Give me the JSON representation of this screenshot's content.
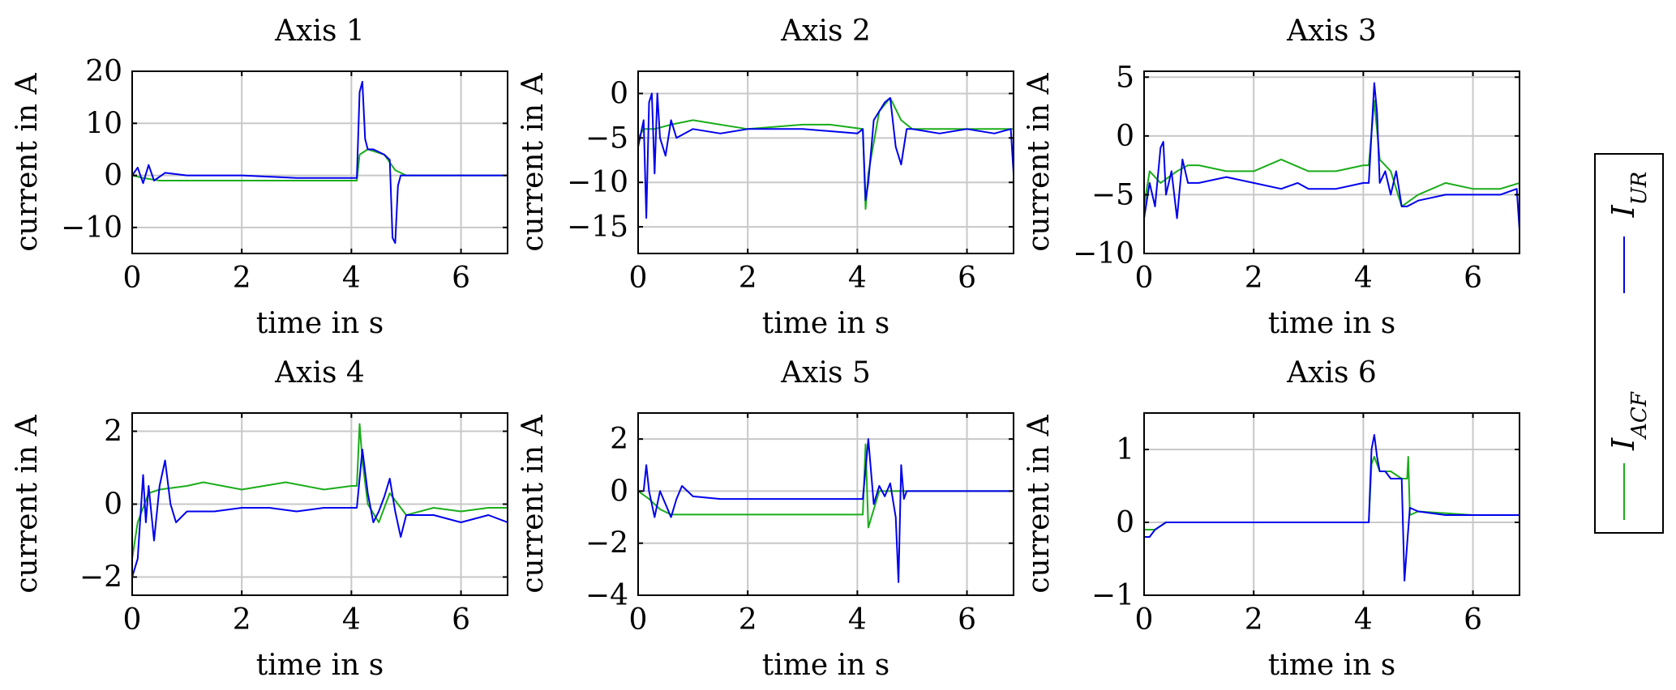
{
  "figure": {
    "legend": [
      {
        "label": "I",
        "subscript": "UR",
        "color": "#0000ee"
      },
      {
        "label": "I",
        "subscript": "ACF",
        "color": "#1aad1a"
      }
    ]
  },
  "chart_data": [
    {
      "type": "line",
      "title": "Axis 1",
      "xlabel": "time in s",
      "ylabel": "current in A",
      "xlim": [
        0,
        6.85
      ],
      "ylim": [
        -15,
        20
      ],
      "xticks": [
        0,
        2,
        4,
        6
      ],
      "yticks": [
        -10,
        0,
        10,
        20
      ],
      "ytick_labels": [
        "−10",
        "0",
        "10",
        "20"
      ],
      "grid": true,
      "series": [
        {
          "name": "I_UR",
          "color": "#0000ee",
          "x": [
            0,
            0.1,
            0.2,
            0.3,
            0.4,
            0.6,
            1.0,
            2.0,
            3.0,
            4.1,
            4.15,
            4.2,
            4.25,
            4.3,
            4.4,
            4.6,
            4.7,
            4.75,
            4.8,
            4.85,
            4.9,
            5.0,
            5.5,
            6.0,
            6.85
          ],
          "values": [
            0,
            1.5,
            -1.5,
            2,
            -1,
            0.5,
            0,
            0,
            -0.5,
            -0.5,
            16,
            18,
            7,
            5,
            5,
            4,
            3,
            -12,
            -13,
            -2,
            0,
            0,
            0,
            0,
            0
          ]
        },
        {
          "name": "I_ACF",
          "color": "#1aad1a",
          "x": [
            0,
            0.2,
            0.5,
            1.0,
            2.0,
            3.0,
            4.1,
            4.15,
            4.3,
            4.6,
            4.8,
            5.0,
            6.0,
            6.85
          ],
          "values": [
            0,
            -0.5,
            -1,
            -1,
            -1,
            -1,
            -1,
            4,
            5,
            4,
            1,
            0,
            0,
            0
          ]
        }
      ]
    },
    {
      "type": "line",
      "title": "Axis 2",
      "xlabel": "time in s",
      "ylabel": "current in A",
      "xlim": [
        0,
        6.85
      ],
      "ylim": [
        -18,
        2.5
      ],
      "xticks": [
        0,
        2,
        4,
        6
      ],
      "yticks": [
        -15,
        -10,
        -5,
        0
      ],
      "ytick_labels": [
        "−15",
        "−10",
        "−5",
        "0"
      ],
      "grid": true,
      "series": [
        {
          "name": "I_UR",
          "color": "#0000ee",
          "x": [
            0,
            0.1,
            0.15,
            0.2,
            0.25,
            0.3,
            0.35,
            0.4,
            0.5,
            0.6,
            0.7,
            1.0,
            1.5,
            2.0,
            3.0,
            4.0,
            4.1,
            4.15,
            4.2,
            4.3,
            4.5,
            4.6,
            4.7,
            4.8,
            4.9,
            5.0,
            5.5,
            6.0,
            6.5,
            6.8,
            6.85
          ],
          "values": [
            -6,
            -3,
            -14,
            -1,
            0,
            -9,
            0,
            -5,
            -7,
            -3,
            -5,
            -4,
            -4.5,
            -4,
            -4,
            -4.5,
            -4,
            -12,
            -10,
            -3,
            -1,
            -0.5,
            -6,
            -8,
            -4,
            -4,
            -4.5,
            -4,
            -4.5,
            -4,
            -9
          ]
        },
        {
          "name": "I_ACF",
          "color": "#1aad1a",
          "x": [
            0,
            0.1,
            0.3,
            0.6,
            1.0,
            1.5,
            2.0,
            3.0,
            3.5,
            4.1,
            4.15,
            4.2,
            4.4,
            4.6,
            4.8,
            5.0,
            5.5,
            6.0,
            6.85
          ],
          "values": [
            -5,
            -4,
            -4,
            -3.5,
            -3,
            -3.5,
            -4,
            -3.5,
            -3.5,
            -4,
            -13,
            -9,
            -2,
            -0.5,
            -3,
            -4,
            -4,
            -4,
            -4
          ]
        }
      ]
    },
    {
      "type": "line",
      "title": "Axis 3",
      "xlabel": "time in s",
      "ylabel": "current in A",
      "xlim": [
        0,
        6.85
      ],
      "ylim": [
        -10,
        5.5
      ],
      "xticks": [
        0,
        2,
        4,
        6
      ],
      "yticks": [
        -10,
        -5,
        0,
        5
      ],
      "ytick_labels": [
        "−10",
        "−5",
        "0",
        "5"
      ],
      "grid": true,
      "series": [
        {
          "name": "I_UR",
          "color": "#0000ee",
          "x": [
            0,
            0.1,
            0.2,
            0.3,
            0.35,
            0.4,
            0.5,
            0.6,
            0.7,
            0.8,
            1.0,
            1.5,
            2.0,
            2.5,
            2.8,
            3.0,
            3.5,
            4.0,
            4.1,
            4.2,
            4.25,
            4.3,
            4.4,
            4.5,
            4.6,
            4.7,
            4.8,
            5.0,
            5.5,
            6.0,
            6.5,
            6.8,
            6.85
          ],
          "values": [
            -7,
            -4,
            -6,
            -1,
            -0.5,
            -5,
            -3,
            -7,
            -2,
            -4,
            -4,
            -3.5,
            -4,
            -4.5,
            -4,
            -4.5,
            -4.5,
            -4,
            -4,
            4.5,
            2,
            -4,
            -3,
            -5,
            -3,
            -6,
            -6,
            -5.5,
            -5,
            -5,
            -5,
            -4.5,
            -8
          ]
        },
        {
          "name": "I_ACF",
          "color": "#1aad1a",
          "x": [
            0,
            0.1,
            0.3,
            0.6,
            0.8,
            1.0,
            1.5,
            2.0,
            2.5,
            3.0,
            3.5,
            4.0,
            4.1,
            4.2,
            4.3,
            4.5,
            4.7,
            5.0,
            5.5,
            6.0,
            6.5,
            6.85
          ],
          "values": [
            -6,
            -3,
            -4,
            -3,
            -2.5,
            -2.5,
            -3,
            -3,
            -2,
            -3,
            -3,
            -2.5,
            -2.5,
            3,
            -2,
            -3,
            -6,
            -5,
            -4,
            -4.5,
            -4.5,
            -4
          ]
        }
      ]
    },
    {
      "type": "line",
      "title": "Axis 4",
      "xlabel": "time in s",
      "ylabel": "current in A",
      "xlim": [
        0,
        6.85
      ],
      "ylim": [
        -2.5,
        2.5
      ],
      "xticks": [
        0,
        2,
        4,
        6
      ],
      "yticks": [
        -2,
        0,
        2
      ],
      "ytick_labels": [
        "−2",
        "0",
        "2"
      ],
      "grid": true,
      "series": [
        {
          "name": "I_UR",
          "color": "#0000ee",
          "x": [
            0,
            0.1,
            0.2,
            0.25,
            0.3,
            0.4,
            0.5,
            0.6,
            0.7,
            0.8,
            1.0,
            1.5,
            2.0,
            2.5,
            3.0,
            3.5,
            4.0,
            4.1,
            4.2,
            4.3,
            4.4,
            4.5,
            4.6,
            4.7,
            4.8,
            4.9,
            5.0,
            5.5,
            6.0,
            6.5,
            6.85
          ],
          "values": [
            -2,
            -1.5,
            0.8,
            -0.5,
            0.5,
            -1,
            0.5,
            1.2,
            0,
            -0.5,
            -0.2,
            -0.2,
            -0.1,
            -0.1,
            -0.2,
            -0.1,
            -0.1,
            -0.1,
            1.5,
            0.3,
            -0.5,
            -0.2,
            0.2,
            0.7,
            -0.2,
            -0.9,
            -0.3,
            -0.3,
            -0.5,
            -0.3,
            -0.5
          ]
        },
        {
          "name": "I_ACF",
          "color": "#1aad1a",
          "x": [
            0,
            0.1,
            0.3,
            0.5,
            1.0,
            1.3,
            2.0,
            2.8,
            3.5,
            4.0,
            4.1,
            4.15,
            4.2,
            4.3,
            4.5,
            4.7,
            5.0,
            5.5,
            6.0,
            6.5,
            6.85
          ],
          "values": [
            -1.5,
            -0.5,
            0.3,
            0.4,
            0.5,
            0.6,
            0.4,
            0.6,
            0.4,
            0.5,
            0.5,
            2.2,
            1.2,
            0,
            -0.5,
            0.3,
            -0.3,
            -0.1,
            -0.2,
            -0.1,
            -0.1
          ]
        }
      ]
    },
    {
      "type": "line",
      "title": "Axis 5",
      "xlabel": "time in s",
      "ylabel": "current in A",
      "xlim": [
        0,
        6.85
      ],
      "ylim": [
        -4,
        3
      ],
      "xticks": [
        0,
        2,
        4,
        6
      ],
      "yticks": [
        -4,
        -2,
        0,
        2
      ],
      "ytick_labels": [
        "−4",
        "−2",
        "0",
        "2"
      ],
      "grid": true,
      "series": [
        {
          "name": "I_UR",
          "color": "#0000ee",
          "x": [
            0,
            0.1,
            0.15,
            0.2,
            0.3,
            0.4,
            0.5,
            0.6,
            0.7,
            0.8,
            1.0,
            1.5,
            2.0,
            3.0,
            4.0,
            4.1,
            4.2,
            4.3,
            4.4,
            4.5,
            4.6,
            4.7,
            4.75,
            4.8,
            4.85,
            4.9,
            5.0,
            5.5,
            6.0,
            6.85
          ],
          "values": [
            0,
            0,
            1,
            0,
            -1,
            0,
            -0.5,
            -1,
            -0.3,
            0.2,
            -0.2,
            -0.3,
            -0.3,
            -0.3,
            -0.3,
            -0.3,
            2,
            -0.5,
            0.2,
            -0.2,
            0.3,
            -1,
            -3.5,
            1,
            -0.3,
            0,
            0,
            0,
            0,
            0
          ]
        },
        {
          "name": "I_ACF",
          "color": "#1aad1a",
          "x": [
            0,
            0.2,
            0.4,
            0.6,
            1.0,
            2.0,
            3.0,
            4.0,
            4.1,
            4.15,
            4.2,
            4.4,
            4.6,
            4.8,
            5.0,
            6.0,
            6.85
          ],
          "values": [
            0,
            -0.3,
            -0.7,
            -0.9,
            -0.9,
            -0.9,
            -0.9,
            -0.9,
            -0.9,
            1.8,
            -1.4,
            0,
            0,
            0,
            0,
            0,
            0
          ]
        }
      ]
    },
    {
      "type": "line",
      "title": "Axis 6",
      "xlabel": "time in s",
      "ylabel": "current in A",
      "xlim": [
        0,
        6.85
      ],
      "ylim": [
        -1,
        1.5
      ],
      "xticks": [
        0,
        2,
        4,
        6
      ],
      "yticks": [
        -1,
        0,
        1
      ],
      "ytick_labels": [
        "−1",
        "0",
        "1"
      ],
      "grid": true,
      "series": [
        {
          "name": "I_UR",
          "color": "#0000ee",
          "x": [
            0,
            0.1,
            0.2,
            0.4,
            0.6,
            1.0,
            2.0,
            3.0,
            4.1,
            4.15,
            4.2,
            4.25,
            4.3,
            4.4,
            4.5,
            4.6,
            4.7,
            4.75,
            4.8,
            4.85,
            5.0,
            5.5,
            6.0,
            6.85
          ],
          "values": [
            -0.2,
            -0.2,
            -0.1,
            0,
            0,
            0,
            0,
            0,
            0,
            1.0,
            1.2,
            0.9,
            0.7,
            0.7,
            0.6,
            0.6,
            0.6,
            -0.8,
            -0.3,
            0.2,
            0.15,
            0.1,
            0.1,
            0.1
          ]
        },
        {
          "name": "I_ACF",
          "color": "#1aad1a",
          "x": [
            0,
            0.2,
            0.4,
            1.0,
            2.0,
            3.0,
            4.1,
            4.15,
            4.2,
            4.3,
            4.5,
            4.7,
            4.8,
            4.82,
            4.85,
            5.0,
            6.0,
            6.85
          ],
          "values": [
            -0.1,
            -0.1,
            0,
            0,
            0,
            0,
            0,
            0.8,
            0.9,
            0.7,
            0.7,
            0.6,
            0.6,
            0.9,
            0.1,
            0.15,
            0.1,
            0.1
          ]
        }
      ]
    }
  ]
}
